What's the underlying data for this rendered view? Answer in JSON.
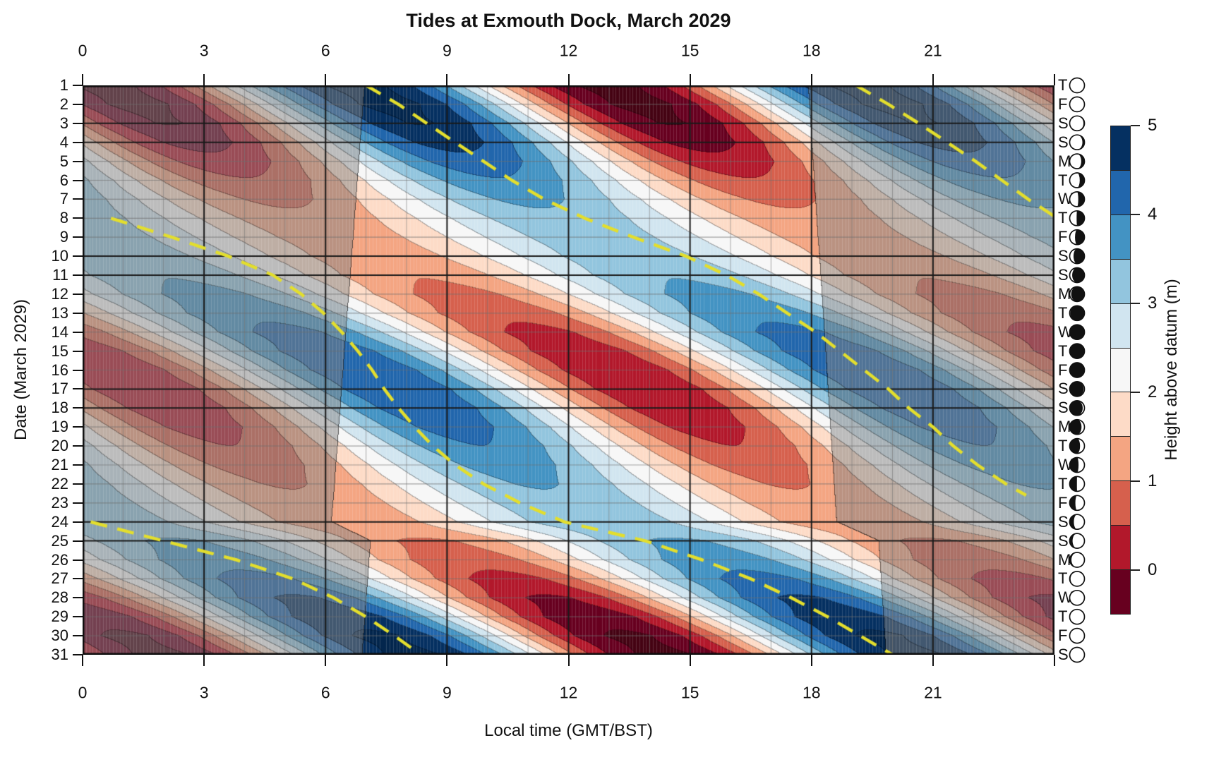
{
  "title": "Tides at Exmouth Dock, March 2029",
  "chart_data": {
    "type": "heatmap",
    "title": "Tides at Exmouth Dock, March 2029",
    "xlabel": "Local time (GMT/BST)",
    "ylabel": "Date (March 2029)",
    "zlabel": "Height above datum (m)",
    "x_range_hours": [
      0,
      24
    ],
    "x_ticks": [
      0,
      3,
      6,
      9,
      12,
      15,
      18,
      21
    ],
    "day_range": [
      1,
      31
    ],
    "colorbar_ticks": [
      5,
      4,
      3,
      2,
      1,
      0
    ],
    "contour_levels_m": [
      -0.5,
      0,
      0.5,
      1,
      1.5,
      2,
      2.5,
      3,
      3.5,
      4,
      4.5,
      5
    ],
    "band_colors_low_to_high": [
      "#67001f",
      "#b2182b",
      "#d6604d",
      "#f4a582",
      "#fddbc7",
      "#f7f7f7",
      "#d1e5f0",
      "#92c5de",
      "#4393c3",
      "#2166ac",
      "#053061"
    ],
    "under_color": "#450313",
    "over_color": "#03264d",
    "night_shade_color": "#808080",
    "night_shade_blend": 0.5,
    "moon_line_color": "#e3de2d",
    "grid_minor_color": "rgba(105,105,105,0.55)",
    "grid_day_color": "rgba(110,110,110,0.62)",
    "grid_major_color": "#1a1a1a",
    "weekend_line_days": [
      3,
      4,
      10,
      11,
      17,
      18,
      24,
      25
    ],
    "mesh_minutes": 5,
    "tide_model": {
      "mean_level_m": 2.25,
      "semidiurnal_period_h": 12.4206,
      "high_water_day1_gmt_h": 6.3,
      "high_water_drift_h_per_day": 0.8412,
      "high_water_wobble_h": 0.45,
      "springneap_mean_amp_m": 1.85,
      "springneap_mod_amp_m": 0.75,
      "springneap_period_d": 14.765,
      "spring_peak_day": 1.55,
      "perigee_mod_frac": 0.15,
      "perigee_period_d": 27.55,
      "perigee_peak_day": 1.0
    },
    "dst": {
      "bst_starts_day": 25,
      "offset_h": 1
    },
    "sunrise_local_h": [
      6.97,
      6.93,
      6.9,
      6.86,
      6.83,
      6.79,
      6.76,
      6.72,
      6.69,
      6.65,
      6.62,
      6.58,
      6.54,
      6.51,
      6.47,
      6.44,
      6.4,
      6.37,
      6.33,
      6.3,
      6.26,
      6.23,
      6.19,
      6.15,
      7.12,
      7.08,
      7.05,
      7.01,
      6.98,
      6.94,
      6.91
    ],
    "sunset_local_h": [
      17.93,
      17.96,
      17.99,
      18.02,
      18.05,
      18.08,
      18.11,
      18.14,
      18.17,
      18.21,
      18.24,
      18.27,
      18.3,
      18.33,
      18.36,
      18.39,
      18.42,
      18.45,
      18.48,
      18.51,
      18.54,
      18.57,
      18.6,
      18.63,
      19.67,
      19.7,
      19.73,
      19.76,
      19.79,
      19.82,
      19.85
    ],
    "moonset_dashes_day_time": [
      [
        [
          1,
          7.0
        ],
        [
          2,
          7.8
        ],
        [
          3,
          8.5
        ],
        [
          4,
          9.2
        ],
        [
          5,
          9.9
        ],
        [
          6,
          10.6
        ],
        [
          7,
          11.4
        ],
        [
          8,
          12.4
        ],
        [
          9,
          13.6
        ],
        [
          10,
          14.9
        ],
        [
          11,
          15.9
        ],
        [
          12,
          16.7
        ],
        [
          13,
          17.4
        ],
        [
          14,
          18.1
        ],
        [
          15,
          18.7
        ],
        [
          16,
          19.3
        ],
        [
          17,
          19.9
        ],
        [
          18,
          20.4
        ],
        [
          19,
          21.0
        ],
        [
          20,
          21.5
        ],
        [
          21,
          22.1
        ],
        [
          22,
          22.8
        ],
        [
          22.6,
          23.3
        ]
      ],
      [
        [
          24,
          0.2
        ],
        [
          25,
          2.0
        ],
        [
          26,
          3.8
        ],
        [
          27,
          5.2
        ],
        [
          28,
          6.2
        ],
        [
          29,
          7.0
        ],
        [
          30,
          7.7
        ],
        [
          31,
          8.35
        ]
      ]
    ],
    "moonrise_dashes_day_time": [
      [
        [
          1,
          19.1
        ],
        [
          2,
          19.9
        ],
        [
          3,
          20.65
        ],
        [
          4,
          21.35
        ],
        [
          5,
          22.05
        ],
        [
          6,
          22.7
        ],
        [
          7,
          23.35
        ],
        [
          7.9,
          24.0
        ]
      ],
      [
        [
          8,
          0.7
        ],
        [
          9,
          2.2
        ],
        [
          10,
          3.6
        ],
        [
          11,
          4.7
        ],
        [
          12,
          5.4
        ],
        [
          13,
          5.95
        ],
        [
          14,
          6.4
        ],
        [
          15,
          6.8
        ],
        [
          16,
          7.15
        ],
        [
          17,
          7.45
        ],
        [
          18,
          7.8
        ],
        [
          19,
          8.2
        ],
        [
          20,
          8.65
        ],
        [
          21,
          9.2
        ],
        [
          22,
          9.9
        ],
        [
          23,
          10.8
        ],
        [
          24,
          11.9
        ],
        [
          25,
          13.9
        ],
        [
          26,
          15.3
        ],
        [
          27,
          16.5
        ],
        [
          28,
          17.5
        ],
        [
          29,
          18.4
        ],
        [
          30,
          19.2
        ],
        [
          31,
          20.0
        ]
      ]
    ],
    "days": {
      "dates": [
        1,
        2,
        3,
        4,
        5,
        6,
        7,
        8,
        9,
        10,
        11,
        12,
        13,
        14,
        15,
        16,
        17,
        18,
        19,
        20,
        21,
        22,
        23,
        24,
        25,
        26,
        27,
        28,
        29,
        30,
        31
      ],
      "weekday_letters": [
        "T",
        "F",
        "S",
        "S",
        "M",
        "T",
        "W",
        "T",
        "F",
        "S",
        "S",
        "M",
        "T",
        "W",
        "T",
        "F",
        "S",
        "S",
        "M",
        "T",
        "W",
        "T",
        "F",
        "S",
        "S",
        "M",
        "T",
        "W",
        "T",
        "F",
        "S"
      ],
      "moon_dark_fraction": [
        0.005,
        0.03,
        0.07,
        0.14,
        0.22,
        0.32,
        0.42,
        0.53,
        0.64,
        0.74,
        0.83,
        0.9,
        0.955,
        0.99,
        1.0,
        0.985,
        0.945,
        0.88,
        0.8,
        0.7,
        0.6,
        0.49,
        0.385,
        0.285,
        0.195,
        0.12,
        0.06,
        0.025,
        0.005,
        0.002,
        0.02
      ],
      "moon_dark_side_switch_day": 15
    }
  }
}
